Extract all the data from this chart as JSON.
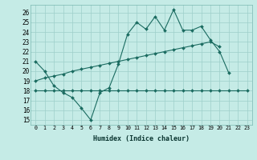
{
  "title": "",
  "xlabel": "Humidex (Indice chaleur)",
  "background_color": "#c5ebe6",
  "grid_color": "#9ecfca",
  "line_color": "#1a6b60",
  "xlim": [
    -0.5,
    23.5
  ],
  "ylim": [
    14.5,
    26.8
  ],
  "yticks": [
    15,
    16,
    17,
    18,
    19,
    20,
    21,
    22,
    23,
    24,
    25,
    26
  ],
  "xticks": [
    0,
    1,
    2,
    3,
    4,
    5,
    6,
    7,
    8,
    9,
    10,
    11,
    12,
    13,
    14,
    15,
    16,
    17,
    18,
    19,
    20,
    21,
    22,
    23
  ],
  "line1_y": [
    21.0,
    20.0,
    18.5,
    17.8,
    17.3,
    16.2,
    15.0,
    17.8,
    18.3,
    20.7,
    23.8,
    25.0,
    24.3,
    25.6,
    24.2,
    26.3,
    24.2,
    24.2,
    24.6,
    23.2,
    22.0,
    19.8,
    null,
    null
  ],
  "line2_y": [
    null,
    null,
    null,
    null,
    null,
    null,
    null,
    null,
    null,
    null,
    null,
    null,
    null,
    null,
    null,
    null,
    null,
    null,
    null,
    null,
    null,
    null,
    18.0,
    18.0
  ],
  "line2_full_y": [
    18.0,
    18.0,
    18.0,
    18.0,
    18.0,
    18.0,
    18.0,
    18.0,
    18.0,
    18.0,
    18.0,
    18.0,
    18.0,
    18.0,
    18.0,
    18.0,
    18.0,
    18.0,
    18.0,
    18.0,
    18.0,
    18.0,
    18.0,
    18.0
  ],
  "line3_y": [
    19.0,
    19.3,
    19.5,
    19.7,
    20.0,
    20.2,
    20.4,
    20.6,
    20.8,
    21.0,
    21.2,
    21.4,
    21.6,
    21.8,
    22.0,
    22.2,
    22.4,
    22.6,
    22.8,
    23.0,
    22.5,
    null,
    null,
    null
  ],
  "line3b_y": [
    null,
    null,
    null,
    null,
    null,
    null,
    null,
    null,
    null,
    null,
    null,
    null,
    null,
    null,
    null,
    null,
    null,
    null,
    null,
    null,
    null,
    null,
    null,
    null
  ]
}
